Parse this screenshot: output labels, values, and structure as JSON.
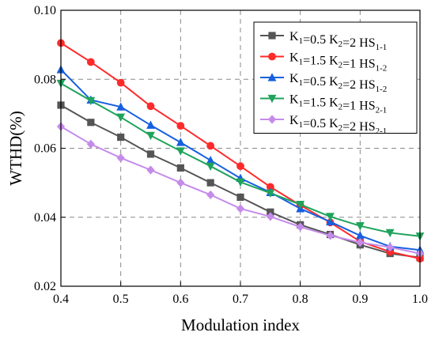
{
  "chart_data": {
    "type": "line",
    "xlabel": "Modulation index",
    "ylabel": "WTHD(%)",
    "xlim": [
      0.4,
      1.0
    ],
    "ylim": [
      0.02,
      0.1
    ],
    "xticks": [
      "0.4",
      "0.5",
      "0.6",
      "0.7",
      "0.8",
      "0.9",
      "1.0"
    ],
    "yticks": [
      "0.02",
      "0.04",
      "0.06",
      "0.08",
      "0.10"
    ],
    "grid": true,
    "legend_position": "top-right",
    "x": [
      0.4,
      0.45,
      0.5,
      0.55,
      0.6,
      0.65,
      0.7,
      0.75,
      0.8,
      0.85,
      0.9,
      0.95,
      1.0
    ],
    "series": [
      {
        "name_main": "K1=0.5 K2=2 HS",
        "name_sub": "1-1",
        "k1_sub": "1",
        "k1_val": "=0.5 K",
        "k2_sub": "2",
        "k2_val": "=2 HS",
        "hs_sub": "1-1",
        "color": "#555555",
        "marker": "square",
        "values": [
          0.0725,
          0.0675,
          0.0632,
          0.0583,
          0.0543,
          0.05,
          0.0458,
          0.0415,
          0.0378,
          0.035,
          0.032,
          0.0295,
          0.0283
        ]
      },
      {
        "name_main": "K1=1.5 K2=1 HS",
        "name_sub": "1-2",
        "k1_sub": "1",
        "k1_val": "=1.5 K",
        "k2_sub": "2",
        "k2_val": "=1 HS",
        "hs_sub": "1-2",
        "color": "#ff2a2a",
        "marker": "circle",
        "values": [
          0.0905,
          0.085,
          0.079,
          0.0722,
          0.0665,
          0.0607,
          0.0548,
          0.0488,
          0.0435,
          0.0385,
          0.033,
          0.03,
          0.028
        ]
      },
      {
        "name_main": "K1=0.5 K2=2 HS",
        "name_sub": "1-2",
        "k1_sub": "1",
        "k1_val": "=0.5 K",
        "k2_sub": "2",
        "k2_val": "=2 HS",
        "hs_sub": "1-2",
        "color": "#1560e0",
        "marker": "triangle-up",
        "values": [
          0.0828,
          0.074,
          0.072,
          0.0667,
          0.0617,
          0.0565,
          0.0513,
          0.0472,
          0.0425,
          0.0387,
          0.0347,
          0.0315,
          0.0305
        ]
      },
      {
        "name_main": "K1=1.5 K2=1 HS",
        "name_sub": "2-1",
        "k1_sub": "1",
        "k1_val": "=1.5 K",
        "k2_sub": "2",
        "k2_val": "=1 HS",
        "hs_sub": "2-1",
        "color": "#1fa35c",
        "marker": "triangle-down",
        "values": [
          0.0788,
          0.0738,
          0.069,
          0.0637,
          0.0592,
          0.0548,
          0.0502,
          0.047,
          0.0437,
          0.0402,
          0.0375,
          0.0355,
          0.0345
        ]
      },
      {
        "name_main": "K1=0.5 K2=2 HS",
        "name_sub": "2-1",
        "k1_sub": "1",
        "k1_val": "=0.5 K",
        "k2_sub": "2",
        "k2_val": "=2 HS",
        "hs_sub": "2-1",
        "color": "#c58bea",
        "marker": "diamond",
        "values": [
          0.0663,
          0.0612,
          0.0572,
          0.0537,
          0.05,
          0.0465,
          0.0425,
          0.0402,
          0.0372,
          0.0347,
          0.0327,
          0.0313,
          0.0295
        ]
      }
    ]
  }
}
